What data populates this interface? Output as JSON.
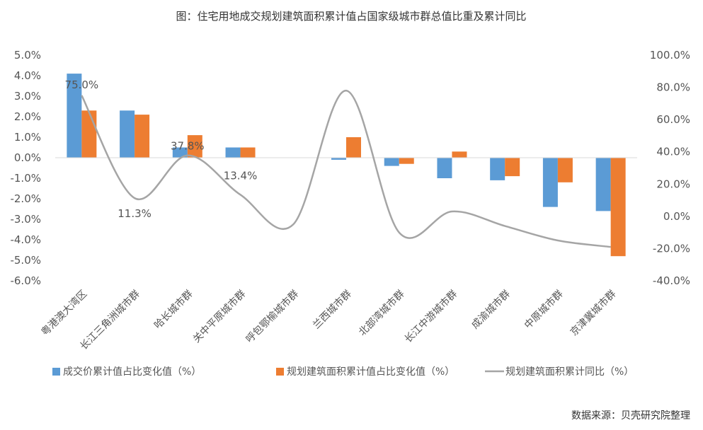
{
  "chart_data": {
    "type": "bar",
    "title": "图：住宅用地成交规划建筑面积累计值占国家级城市群总值比重及累计同比",
    "categories": [
      "粤港澳大湾区",
      "长江三角洲城市群",
      "哈长城市群",
      "关中平原城市群",
      "呼包鄂榆城市群",
      "兰西城市群",
      "北部湾城市群",
      "长江中游城市群",
      "成渝城市群",
      "中原城市群",
      "京津冀城市群"
    ],
    "series": [
      {
        "name": "成交价累计值占比变化值（%）",
        "type": "bar",
        "axis": "left",
        "color": "#5B9BD5",
        "values": [
          4.1,
          2.3,
          0.5,
          0.5,
          0.0,
          -0.1,
          -0.4,
          -1.0,
          -1.1,
          -2.4,
          -2.6
        ]
      },
      {
        "name": "规划建筑面积累计值占比变化值（%）",
        "type": "bar",
        "axis": "left",
        "color": "#ED7D31",
        "values": [
          2.3,
          2.1,
          1.1,
          0.5,
          0.0,
          1.0,
          -0.3,
          0.3,
          -0.9,
          -1.2,
          -4.8
        ]
      },
      {
        "name": "规划建筑面积累计同比（%）",
        "type": "line",
        "axis": "right",
        "color": "#A5A5A5",
        "values": [
          75.0,
          11.3,
          37.8,
          13.4,
          -5.0,
          78.0,
          -10.0,
          3.0,
          -6.0,
          -15.0,
          -19.0
        ]
      }
    ],
    "data_labels": [
      {
        "category_index": 0,
        "text": "75.0%"
      },
      {
        "category_index": 1,
        "text": "11.3%"
      },
      {
        "category_index": 2,
        "text": "37.8%"
      },
      {
        "category_index": 3,
        "text": "13.4%"
      }
    ],
    "y_left": {
      "min": -6.0,
      "max": 5.0,
      "step": 1.0,
      "ticks": [
        "5.0%",
        "4.0%",
        "3.0%",
        "2.0%",
        "1.0%",
        "0.0%",
        "-1.0%",
        "-2.0%",
        "-3.0%",
        "-4.0%",
        "-5.0%",
        "-6.0%"
      ]
    },
    "y_right": {
      "min": -40.0,
      "max": 100.0,
      "step": 20.0,
      "ticks": [
        "100.0%",
        "80.0%",
        "60.0%",
        "40.0%",
        "20.0%",
        "0.0%",
        "-20.0%",
        "-40.0%"
      ]
    },
    "grid": false,
    "legend_position": "bottom",
    "source": "数据来源：贝壳研究院整理"
  }
}
